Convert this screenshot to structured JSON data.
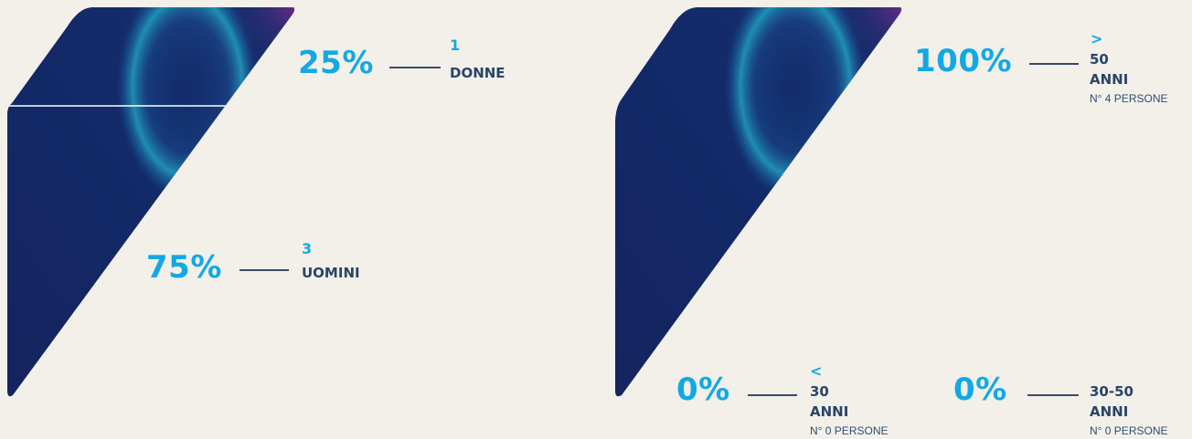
{
  "colors": {
    "background": "#f2f0e9",
    "accent": "#12a8e6",
    "label": "#2a4468",
    "connector": "#3b4a6b",
    "shape_dark": "#14215a",
    "shape_glow": "#1aa6c4",
    "shape_magenta": "#b0156e"
  },
  "chart_data": [
    {
      "type": "bar",
      "categories": [
        "DONNE",
        "UOMINI"
      ],
      "values": [
        25,
        75
      ],
      "counts": [
        1,
        3
      ],
      "value_labels": [
        "25%",
        "75%"
      ],
      "count_labels": [
        "1",
        "3"
      ]
    },
    {
      "type": "bar",
      "categories": [
        "> 50 ANNI",
        "< 30 ANNI",
        "30-50 ANNI"
      ],
      "values": [
        100,
        0,
        0
      ],
      "counts": [
        4,
        0,
        0
      ],
      "value_labels": [
        "100%",
        "0%",
        "0%"
      ],
      "items": [
        {
          "symbol": ">",
          "range": "50",
          "unit": "ANNI",
          "persons": "N° 4 PERSONE"
        },
        {
          "symbol": "<",
          "range": "30",
          "unit": "ANNI",
          "persons": "N° 0 PERSONE"
        },
        {
          "symbol": "",
          "range": "30-50",
          "unit": "ANNI",
          "persons": "N° 0 PERSONE"
        }
      ]
    }
  ]
}
